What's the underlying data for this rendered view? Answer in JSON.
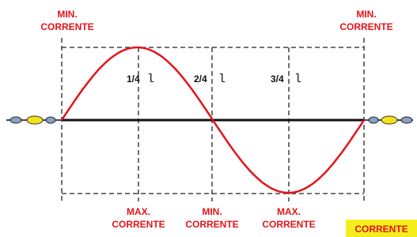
{
  "labels": {
    "top_left": {
      "line1": "MIN.",
      "line2": "CORRENTE"
    },
    "top_right": {
      "line1": "MIN.",
      "line2": "CORRENTE"
    },
    "bottom": [
      {
        "line1": "MAX.",
        "line2": "CORRENTE"
      },
      {
        "line1": "MIN.",
        "line2": "CORRENTE"
      },
      {
        "line1": "MAX.",
        "line2": "CORRENTE"
      }
    ],
    "fractions": [
      {
        "fraction": "1/4",
        "symbol": "l"
      },
      {
        "fraction": "2/4",
        "symbol": "l"
      },
      {
        "fraction": "3/4",
        "symbol": "l"
      }
    ],
    "legend": "CORRENTE"
  }
}
